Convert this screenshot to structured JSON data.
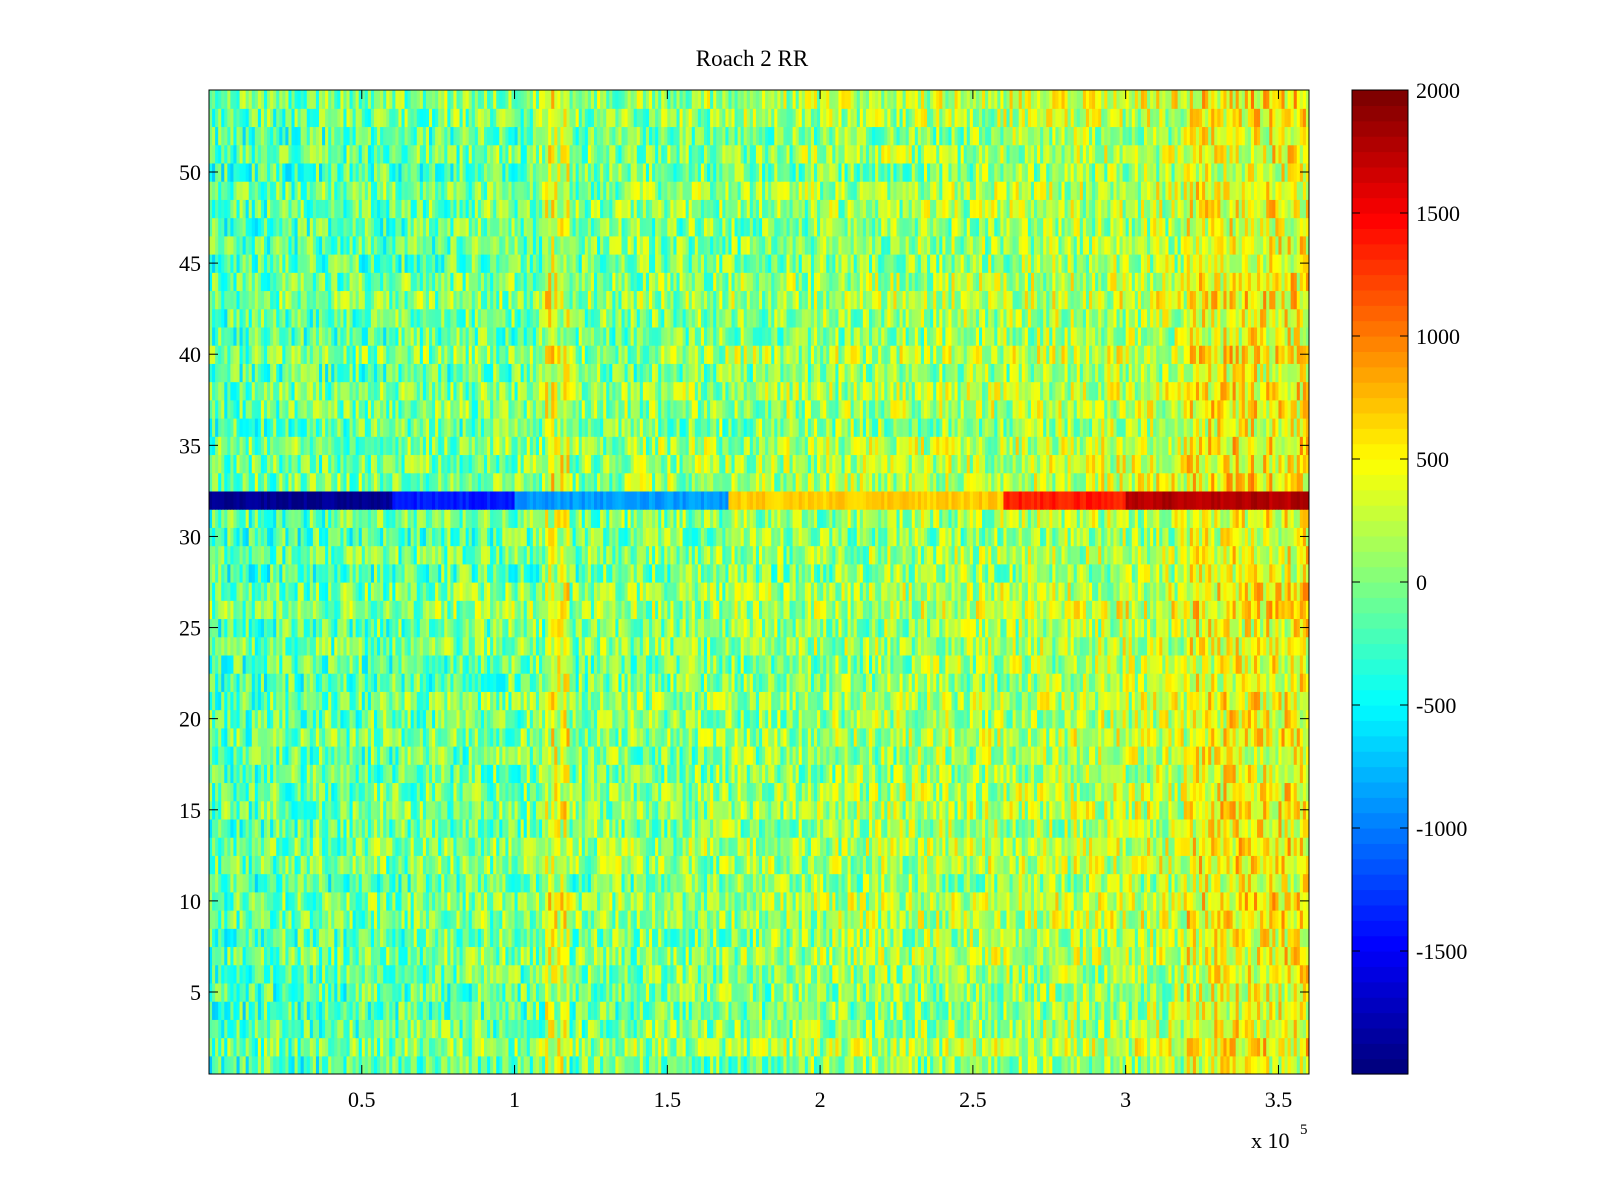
{
  "chart_data": {
    "type": "heatmap",
    "title": "Roach 2 RR",
    "xlabel": "",
    "ylabel": "",
    "xlim": [
      0,
      360000
    ],
    "ylim": [
      0.5,
      54.5
    ],
    "x_exponent_label": "x 10",
    "x_exponent_power": "5",
    "x_ticks": [
      {
        "value": 50000,
        "label": "0.5"
      },
      {
        "value": 100000,
        "label": "1"
      },
      {
        "value": 150000,
        "label": "1.5"
      },
      {
        "value": 200000,
        "label": "2"
      },
      {
        "value": 250000,
        "label": "2.5"
      },
      {
        "value": 300000,
        "label": "3"
      },
      {
        "value": 350000,
        "label": "3.5"
      }
    ],
    "y_ticks": [
      {
        "value": 5,
        "label": "5"
      },
      {
        "value": 10,
        "label": "10"
      },
      {
        "value": 15,
        "label": "15"
      },
      {
        "value": 20,
        "label": "20"
      },
      {
        "value": 25,
        "label": "25"
      },
      {
        "value": 30,
        "label": "30"
      },
      {
        "value": 35,
        "label": "35"
      },
      {
        "value": 40,
        "label": "40"
      },
      {
        "value": 45,
        "label": "45"
      },
      {
        "value": 50,
        "label": "50"
      }
    ],
    "colorbar": {
      "colormap": "jet",
      "range": [
        -2000,
        2000
      ],
      "ticks": [
        {
          "value": 2000,
          "label": "2000"
        },
        {
          "value": 1500,
          "label": "1500"
        },
        {
          "value": 1000,
          "label": "1000"
        },
        {
          "value": 500,
          "label": "500"
        },
        {
          "value": 0,
          "label": "0"
        },
        {
          "value": -500,
          "label": "-500"
        },
        {
          "value": -1000,
          "label": "-1000"
        },
        {
          "value": -1500,
          "label": "-1500"
        }
      ]
    },
    "rows": 54,
    "columns": 360,
    "column_step": 1000,
    "typical_value_range": [
      -800,
      600
    ],
    "highlighted_row": {
      "row": 32,
      "segments": [
        {
          "x": [
            0,
            60000
          ],
          "value": -1950
        },
        {
          "x": [
            60000,
            100000
          ],
          "value": -1400
        },
        {
          "x": [
            100000,
            170000
          ],
          "value": -900
        },
        {
          "x": [
            170000,
            260000
          ],
          "value": 700
        },
        {
          "x": [
            260000,
            300000
          ],
          "value": 1400
        },
        {
          "x": [
            300000,
            360000
          ],
          "value": 1800
        }
      ]
    }
  }
}
